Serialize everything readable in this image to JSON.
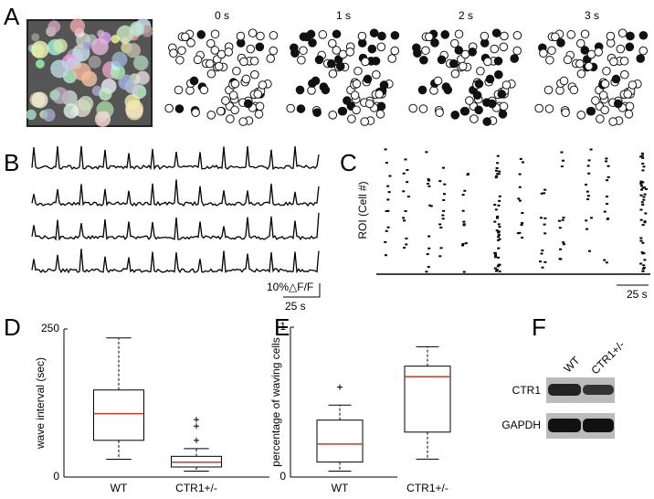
{
  "panel_labels": [
    "A",
    "B",
    "C",
    "D",
    "E",
    "F"
  ],
  "panel_a": {
    "time_labels": [
      "0 s",
      "1 s",
      "2 s",
      "3 s"
    ]
  },
  "panel_b": {
    "scale_label": "10%△F/F",
    "time_scale": "25 s"
  },
  "panel_c": {
    "y_label": "ROI (Cell #)",
    "time_scale": "25 s"
  },
  "chart_data": [
    {
      "type": "box",
      "y_label": "wave interval (sec)",
      "categories": [
        "WT",
        "CTR1+/-"
      ],
      "boxes": [
        {
          "min": 30,
          "q1": 62,
          "median": 107,
          "q3": 147,
          "max": 235,
          "outliers": []
        },
        {
          "min": 10,
          "q1": 17,
          "median": 25,
          "q3": 35,
          "max": 48,
          "outliers": [
            62,
            86,
            97
          ]
        }
      ],
      "ylim": [
        0,
        250
      ],
      "yticks": [
        0,
        250
      ],
      "median_color": "#c0392b"
    },
    {
      "type": "box",
      "y_label": "percentage of waving cells",
      "categories": [
        "WT",
        "CTR1+/-"
      ],
      "boxes": [
        {
          "min": 0.04,
          "q1": 0.1,
          "median": 0.22,
          "q3": 0.38,
          "max": 0.48,
          "outliers": [
            0.6
          ]
        },
        {
          "min": 0.12,
          "q1": 0.3,
          "median": 0.67,
          "q3": 0.74,
          "max": 0.87,
          "outliers": []
        }
      ],
      "ylim": [
        0,
        1
      ],
      "yticks": [
        0,
        1
      ],
      "median_color": "#c0392b"
    }
  ],
  "panel_f": {
    "columns": [
      "WT",
      "CTR1+/-"
    ],
    "rows": [
      "CTR1",
      "GAPDH"
    ]
  }
}
